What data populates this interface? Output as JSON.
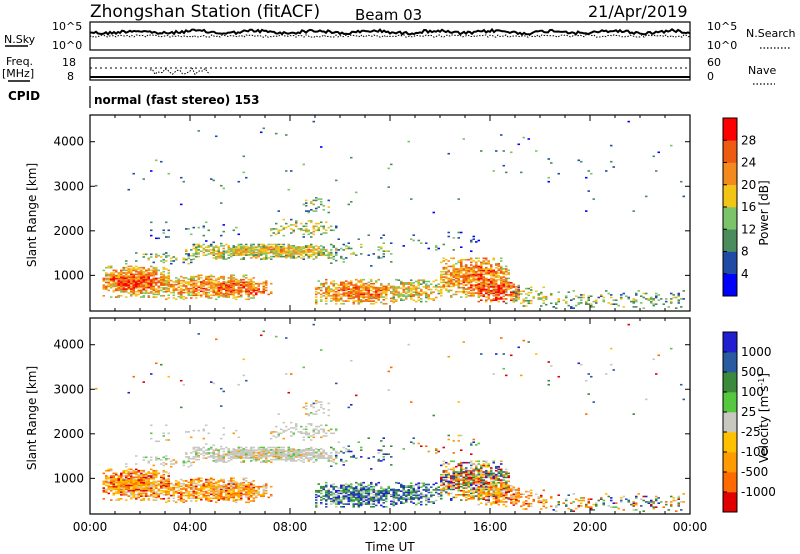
{
  "header": {
    "station": "Zhongshan Station (fitACF)",
    "beam": "Beam 03",
    "date": "21/Apr/2019"
  },
  "noise_panel": {
    "left_label": "N.Sky",
    "right_label": "N.Search",
    "left_ticks": [
      "10^5",
      "10^0"
    ],
    "right_ticks": [
      "10^5",
      "10^0"
    ]
  },
  "freq_panel": {
    "left_label_1": "Freq.",
    "left_label_2": "[MHz]",
    "right_label": "Nave",
    "left_ticks": [
      "18",
      "8"
    ],
    "right_ticks": [
      "60",
      "0"
    ]
  },
  "cpid_panel": {
    "label": "CPID",
    "value": "normal (fast stereo) 153"
  },
  "colors": {
    "power_scale": [
      "#0000ff",
      "#1f4aa6",
      "#4b8c5c",
      "#7cc46a",
      "#f3c418",
      "#f28a1e",
      "#ef5a12",
      "#ff0000"
    ],
    "velocity_scale": [
      "#e00000",
      "#ff6a00",
      "#ff9a00",
      "#ffc000",
      "#c8c8c0",
      "#55c840",
      "#3b8a3b",
      "#2a5aa0",
      "#2020d0"
    ]
  },
  "chart_data": [
    {
      "type": "heatmap",
      "name": "power",
      "ylabel": "Slant Range [km]",
      "yticks": [
        "1000",
        "2000",
        "3000",
        "4000"
      ],
      "ylim": [
        200,
        4600
      ],
      "xlim": [
        "00:00",
        "24:00"
      ],
      "colorbar_label": "Power [dB]",
      "colorbar_ticks": [
        "4",
        "8",
        "12",
        "16",
        "20",
        "24",
        "28"
      ],
      "clim": [
        0,
        32
      ]
    },
    {
      "type": "heatmap",
      "name": "velocity",
      "ylabel": "Slant Range [km]",
      "yticks": [
        "1000",
        "2000",
        "3000",
        "4000"
      ],
      "ylim": [
        200,
        4600
      ],
      "xlim": [
        "00:00",
        "24:00"
      ],
      "xlabel": "Time UT",
      "xticks": [
        "00:00",
        "04:00",
        "08:00",
        "12:00",
        "16:00",
        "20:00",
        "00:00"
      ],
      "colorbar_label": "Velocity [m s",
      "colorbar_label_exp": "-1",
      "colorbar_label_end": "]",
      "colorbar_ticks": [
        "1000",
        "500",
        "100",
        "25",
        "-25",
        "-100",
        "-500",
        "-1000"
      ]
    }
  ]
}
